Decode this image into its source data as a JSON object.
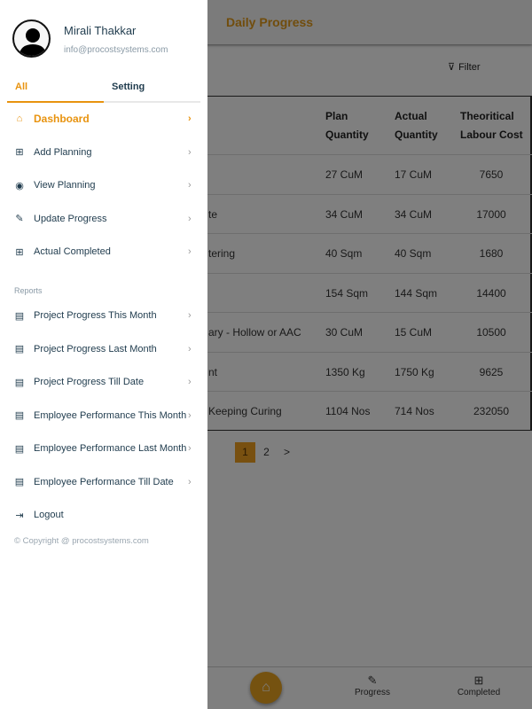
{
  "main": {
    "title": "Daily Progress",
    "filter_label": "Filter",
    "table": {
      "headers": [
        [
          "Plan",
          "Quantity"
        ],
        [
          "Actual",
          "Quantity"
        ],
        [
          "Theoritical",
          "Labour Cost"
        ]
      ],
      "rows": [
        {
          "activity": "",
          "plan": "27 CuM",
          "actual": "17 CuM",
          "cost": "7650"
        },
        {
          "activity": "te",
          "plan": "34 CuM",
          "actual": "34 CuM",
          "cost": "17000"
        },
        {
          "activity": "tering",
          "plan": "40 Sqm",
          "actual": "40 Sqm",
          "cost": "1680"
        },
        {
          "activity": "",
          "plan": "154 Sqm",
          "actual": "144 Sqm",
          "cost": "14400"
        },
        {
          "activity": "ary - Hollow or AAC",
          "plan": "30 CuM",
          "actual": "15 CuM",
          "cost": "10500"
        },
        {
          "activity": "nt",
          "plan": "1350 Kg",
          "actual": "1750 Kg",
          "cost": "9625"
        },
        {
          "activity": "Keeping Curing",
          "plan": "1104 Nos",
          "actual": "714 Nos",
          "cost": "232050"
        }
      ]
    },
    "pagination": {
      "pages": [
        "1",
        "2"
      ],
      "current": "1",
      "next": ">"
    },
    "bottom_nav": {
      "progress": "Progress",
      "completed": "Completed"
    }
  },
  "drawer": {
    "user_name": "Mirali Thakkar",
    "email": "info@procostsystems.com",
    "tabs": [
      "All",
      "Setting"
    ],
    "items": [
      {
        "label": "Dashboard",
        "icon": "home-icon"
      },
      {
        "label": "Add Planning",
        "icon": "plus-square-icon"
      },
      {
        "label": "View Planning",
        "icon": "eye-icon"
      },
      {
        "label": "Update Progress",
        "icon": "edit-icon"
      },
      {
        "label": "Actual Completed",
        "icon": "plus-square-icon"
      }
    ],
    "reports_label": "Reports",
    "reports": [
      {
        "label": "Project Progress This Month"
      },
      {
        "label": "Project Progress Last Month"
      },
      {
        "label": "Project Progress Till Date"
      },
      {
        "label": "Employee Performance This Month"
      },
      {
        "label": "Employee Performance Last Month"
      },
      {
        "label": "Employee Performance Till Date"
      }
    ],
    "logout": "Logout",
    "copyright": "© Copyright @ procostsystems.com"
  },
  "colors": {
    "accent": "#e8930f",
    "text": "#1f3b4d"
  }
}
